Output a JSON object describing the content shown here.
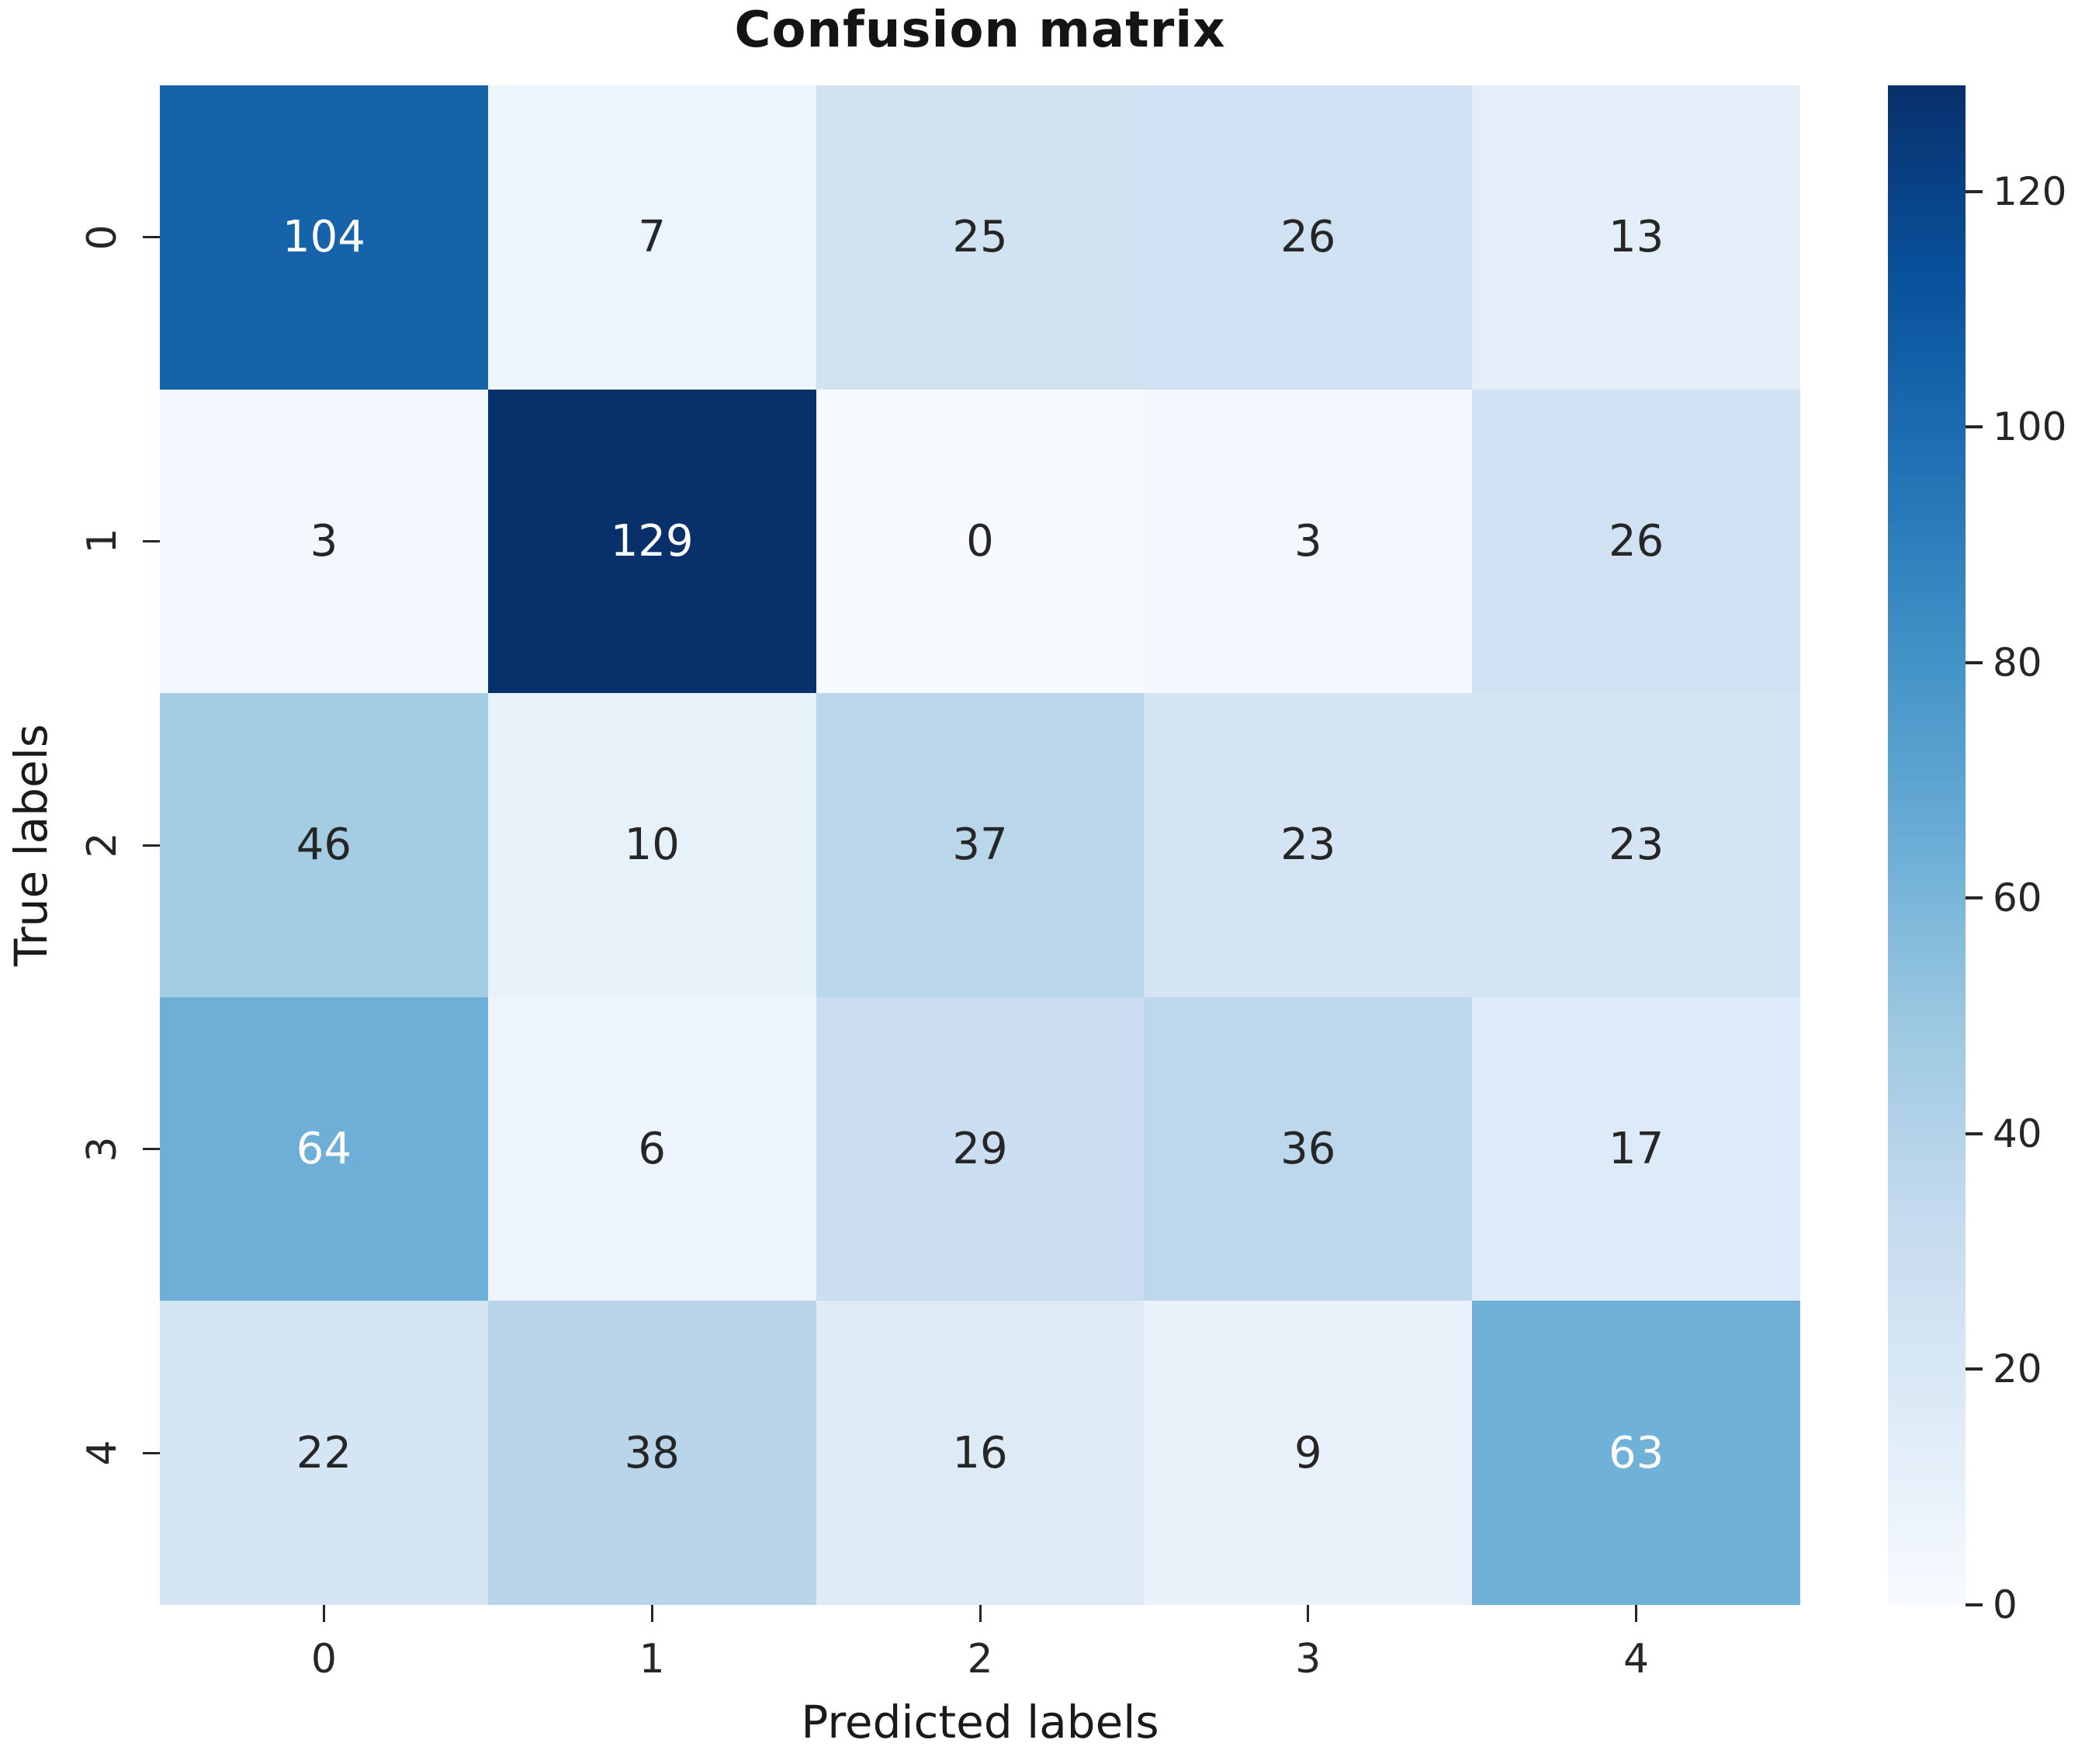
{
  "chart_data": {
    "type": "heatmap",
    "title": "Confusion matrix",
    "xlabel": "Predicted labels",
    "ylabel": "True labels",
    "x_ticklabels": [
      "0",
      "1",
      "2",
      "3",
      "4"
    ],
    "y_ticklabels": [
      "0",
      "1",
      "2",
      "3",
      "4"
    ],
    "matrix": [
      [
        104,
        7,
        25,
        26,
        13
      ],
      [
        3,
        129,
        0,
        3,
        26
      ],
      [
        46,
        10,
        37,
        23,
        23
      ],
      [
        64,
        6,
        29,
        36,
        17
      ],
      [
        22,
        38,
        16,
        9,
        63
      ]
    ],
    "vmin": 0,
    "vmax": 129,
    "colorbar_ticks": [
      0,
      20,
      40,
      60,
      80,
      100,
      120
    ],
    "colorbar_position": "right",
    "grid": false,
    "colormap": {
      "name": "Blues",
      "anchors": [
        "#f7fbff",
        "#deebf7",
        "#c6dbef",
        "#9ecae1",
        "#6baed6",
        "#4292c6",
        "#2171b5",
        "#08519c",
        "#08306b"
      ]
    },
    "annotation_text_colors": {
      "light_cell_text": "#262626",
      "dark_cell_text": "#ffffff"
    }
  }
}
